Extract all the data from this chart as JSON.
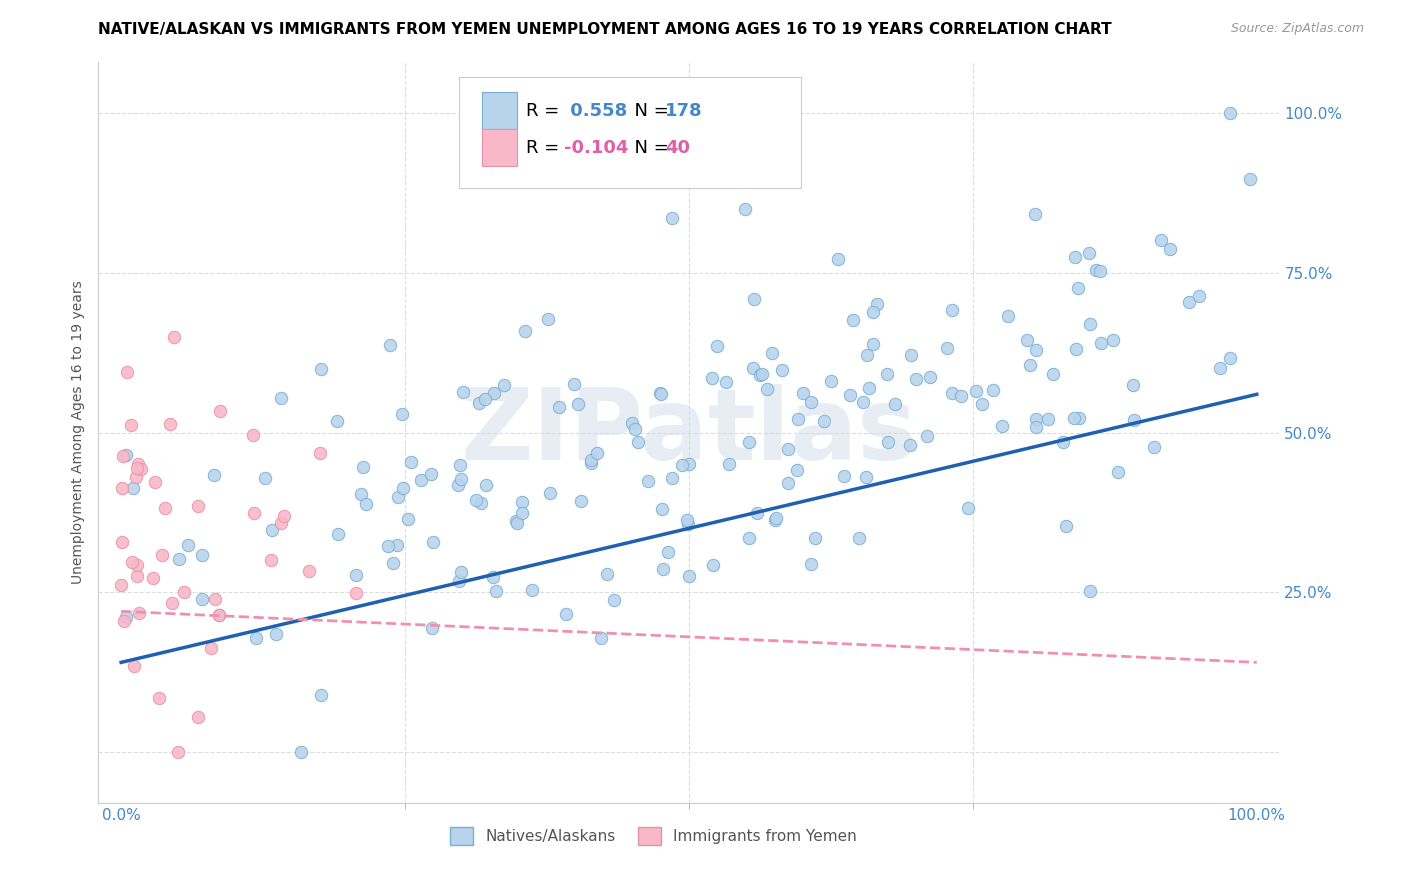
{
  "title": "NATIVE/ALASKAN VS IMMIGRANTS FROM YEMEN UNEMPLOYMENT AMONG AGES 16 TO 19 YEARS CORRELATION CHART",
  "source": "Source: ZipAtlas.com",
  "ylabel": "Unemployment Among Ages 16 to 19 years",
  "xlim": [
    -0.02,
    1.02
  ],
  "ylim": [
    -0.08,
    1.08
  ],
  "blue_color": "#b8d4ed",
  "blue_edge_color": "#7aaed4",
  "pink_color": "#f8b8c8",
  "pink_edge_color": "#e890a8",
  "blue_line_color": "#2060b0",
  "pink_line_color": "#f090b0",
  "R1": 0.558,
  "N1": 178,
  "R2": -0.104,
  "N2": 40,
  "blue_slope": 0.42,
  "blue_intercept": 0.14,
  "pink_slope": -0.08,
  "pink_intercept": 0.22,
  "watermark": "ZIPatlas",
  "watermark_color": "#d0dde8",
  "background_color": "#ffffff",
  "grid_color": "#dddddd",
  "tick_color": "#4488cc",
  "tick_fontsize": 11,
  "label_fontsize": 10,
  "title_fontsize": 11,
  "source_fontsize": 9,
  "dot_size": 80,
  "blue_seed": 42,
  "pink_seed": 13
}
